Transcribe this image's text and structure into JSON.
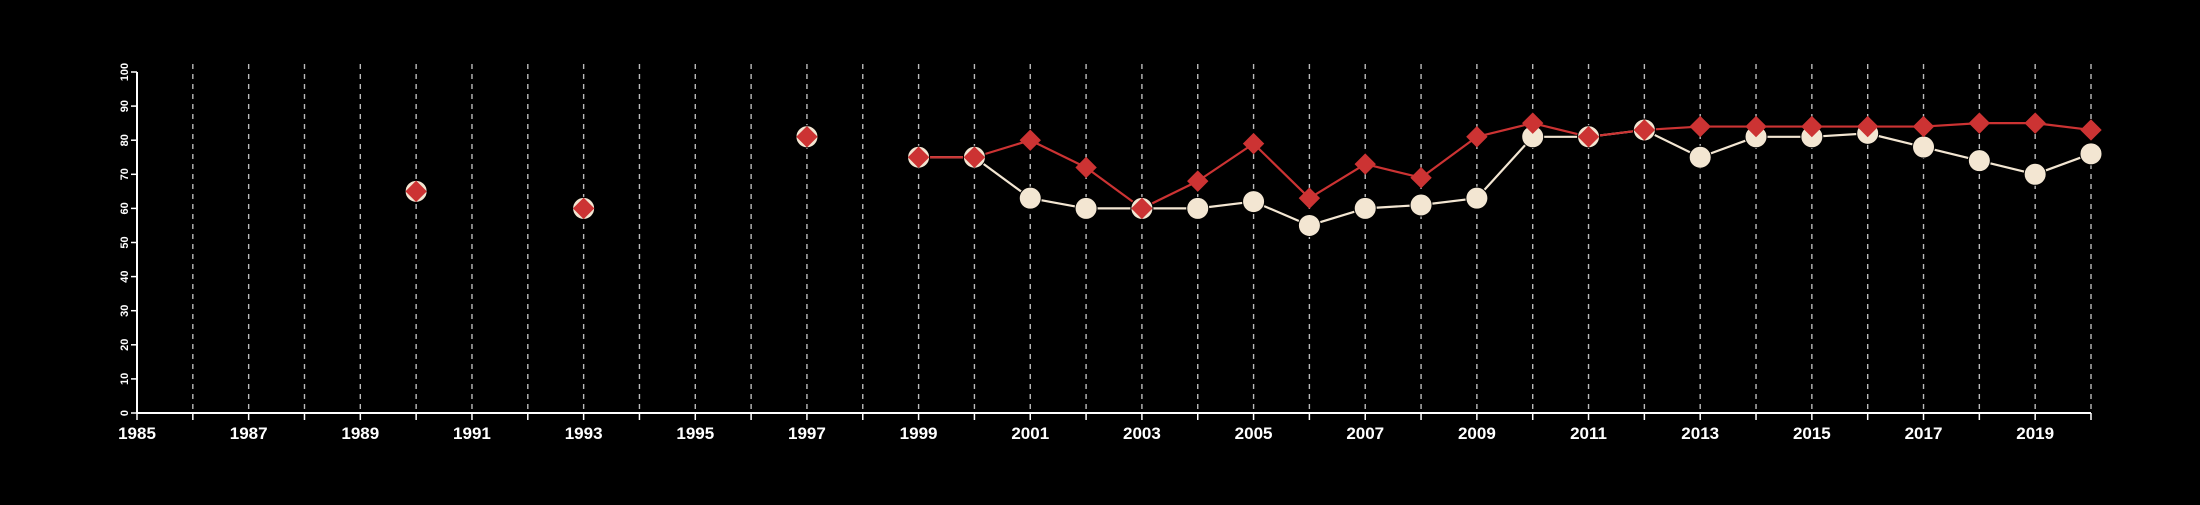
{
  "chart_data": {
    "type": "line",
    "title": "",
    "xlabel": "",
    "ylabel": "",
    "xlim": [
      1985,
      2020
    ],
    "ylim": [
      0,
      100
    ],
    "x_ticks_major": [
      "1985",
      "1987",
      "1989",
      "1991",
      "1993",
      "1995",
      "1997",
      "1999",
      "2001",
      "2003",
      "2005",
      "2007",
      "2009",
      "2011",
      "2013",
      "2015",
      "2017",
      "2019"
    ],
    "y_ticks": [
      "0",
      "10",
      "20",
      "30",
      "40",
      "50",
      "60",
      "70",
      "80",
      "90",
      "100"
    ],
    "vertical_grid": "dashed, one line per year",
    "legend": "none",
    "series": [
      {
        "color": "#f3e6d2",
        "marker": "circle",
        "points": [
          {
            "x": 1990,
            "y": 65
          },
          {
            "x": 1993,
            "y": 60
          },
          {
            "x": 1997,
            "y": 81
          },
          {
            "x": 1999,
            "y": 75
          },
          {
            "x": 2000,
            "y": 75
          },
          {
            "x": 2001,
            "y": 63
          },
          {
            "x": 2002,
            "y": 60
          },
          {
            "x": 2003,
            "y": 60
          },
          {
            "x": 2004,
            "y": 60
          },
          {
            "x": 2005,
            "y": 62
          },
          {
            "x": 2006,
            "y": 55
          },
          {
            "x": 2007,
            "y": 60
          },
          {
            "x": 2008,
            "y": 61
          },
          {
            "x": 2009,
            "y": 63
          },
          {
            "x": 2010,
            "y": 81
          },
          {
            "x": 2011,
            "y": 81
          },
          {
            "x": 2012,
            "y": 83
          },
          {
            "x": 2013,
            "y": 75
          },
          {
            "x": 2014,
            "y": 81
          },
          {
            "x": 2015,
            "y": 81
          },
          {
            "x": 2016,
            "y": 82
          },
          {
            "x": 2017,
            "y": 78
          },
          {
            "x": 2018,
            "y": 74
          },
          {
            "x": 2019,
            "y": 70
          },
          {
            "x": 2020,
            "y": 76
          }
        ]
      },
      {
        "color": "#cc3333",
        "marker": "diamond",
        "points": [
          {
            "x": 1990,
            "y": 65
          },
          {
            "x": 1993,
            "y": 60
          },
          {
            "x": 1997,
            "y": 81
          },
          {
            "x": 1999,
            "y": 75
          },
          {
            "x": 2000,
            "y": 75
          },
          {
            "x": 2001,
            "y": 80
          },
          {
            "x": 2002,
            "y": 72
          },
          {
            "x": 2003,
            "y": 60
          },
          {
            "x": 2004,
            "y": 68
          },
          {
            "x": 2005,
            "y": 79
          },
          {
            "x": 2006,
            "y": 63
          },
          {
            "x": 2007,
            "y": 73
          },
          {
            "x": 2008,
            "y": 69
          },
          {
            "x": 2009,
            "y": 81
          },
          {
            "x": 2010,
            "y": 85
          },
          {
            "x": 2011,
            "y": 81
          },
          {
            "x": 2012,
            "y": 83
          },
          {
            "x": 2013,
            "y": 84
          },
          {
            "x": 2014,
            "y": 84
          },
          {
            "x": 2015,
            "y": 84
          },
          {
            "x": 2016,
            "y": 84
          },
          {
            "x": 2017,
            "y": 84
          },
          {
            "x": 2018,
            "y": 85
          },
          {
            "x": 2019,
            "y": 85
          },
          {
            "x": 2020,
            "y": 83
          }
        ]
      }
    ]
  }
}
